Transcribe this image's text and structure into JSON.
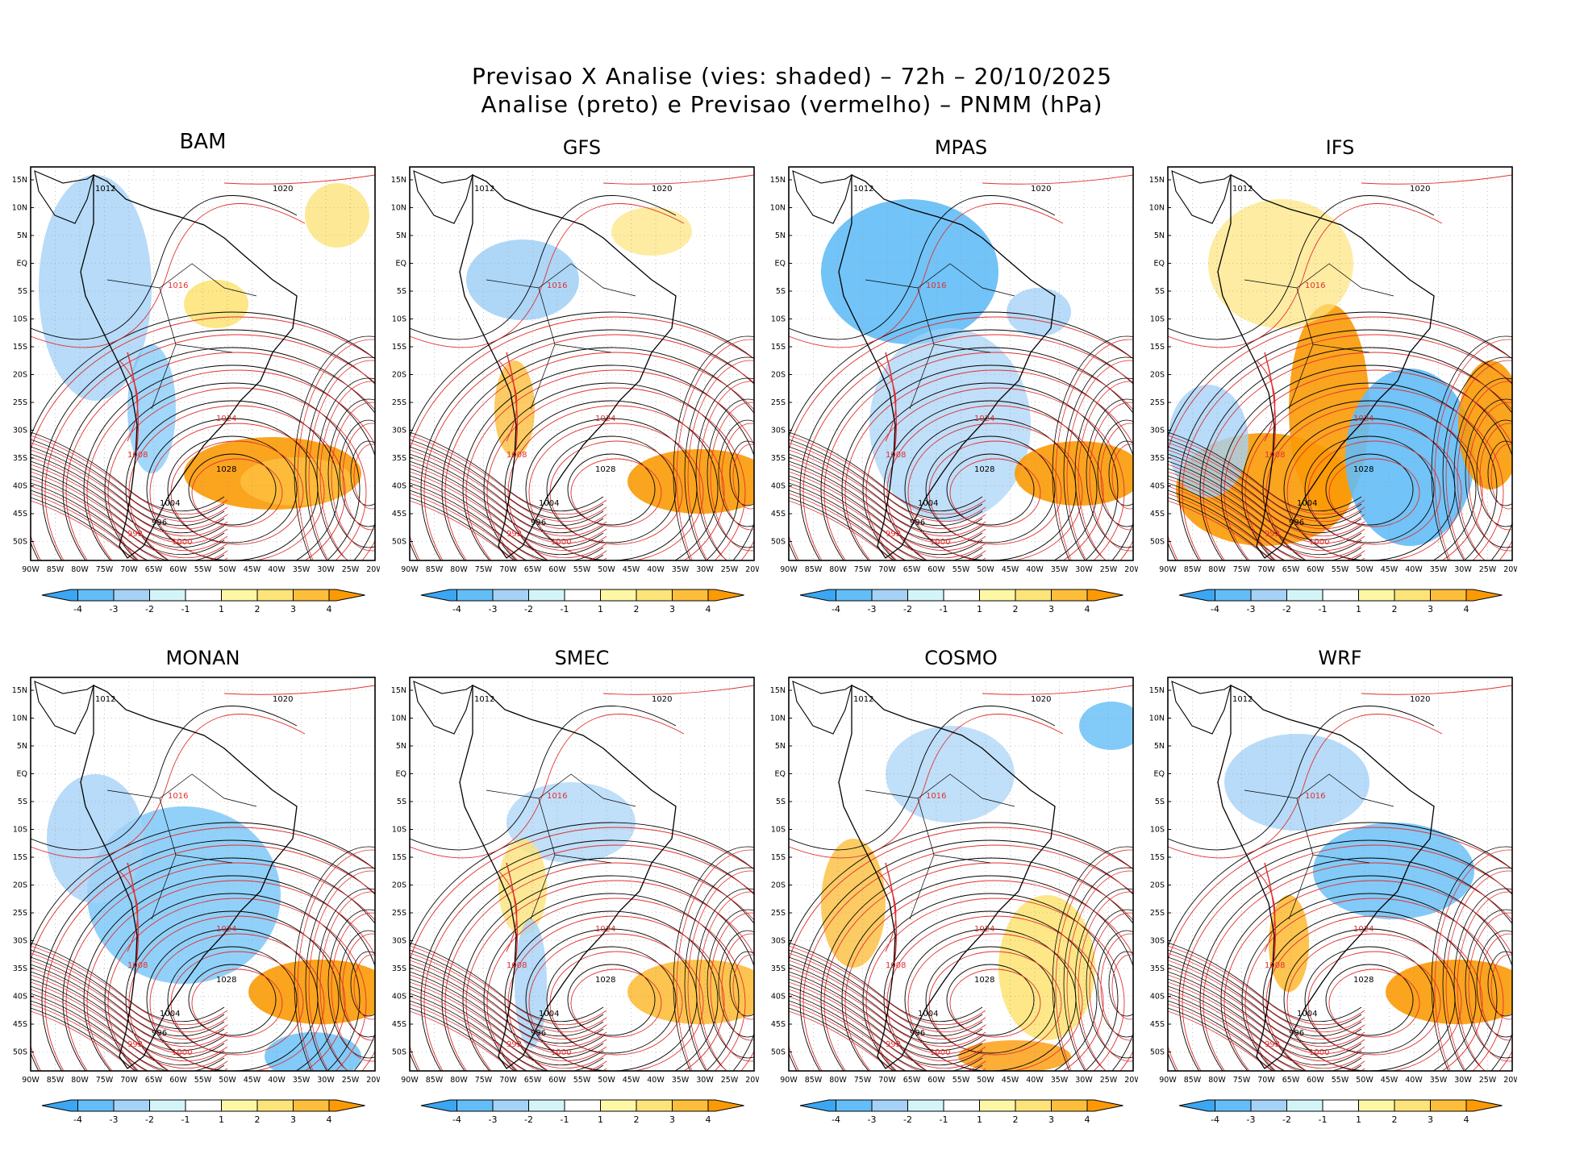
{
  "figure": {
    "title_line1": "Previsao X Analise (vies: shaded) – 72h – 20/10/2025",
    "title_line2": "Analise (preto) e Previsao (vermelho) – PNMM (hPa)"
  },
  "axes": {
    "lat_labels": [
      "15N",
      "10N",
      "5N",
      "EQ",
      "5S",
      "10S",
      "15S",
      "20S",
      "25S",
      "30S",
      "35S",
      "40S",
      "45S",
      "50S"
    ],
    "lon_labels": [
      "90W",
      "85W",
      "80W",
      "75W",
      "70W",
      "65W",
      "60W",
      "55W",
      "50W",
      "45W",
      "40W",
      "35W",
      "30W",
      "25W",
      "20W"
    ]
  },
  "colorbar": {
    "labels": [
      "-4",
      "-3",
      "-2",
      "-1",
      "1",
      "2",
      "3",
      "4"
    ],
    "colors": [
      "#3ba6f2",
      "#63bdf6",
      "#a5d2f6",
      "#d3f5f8",
      "#ffffff",
      "#fdf7a6",
      "#fde47a",
      "#fdbe3c",
      "#fb9a05"
    ]
  },
  "contour_colors": {
    "analysis": "#000000",
    "forecast": "#e03030"
  },
  "panels": [
    {
      "name": "BAM",
      "pressure_labels": [
        "1012",
        "1016",
        "1020",
        "1024",
        "1028",
        "1008",
        "1004",
        "1000",
        "996",
        "992"
      ]
    },
    {
      "name": "GFS",
      "pressure_labels": [
        "1012",
        "1016",
        "1020",
        "1024",
        "1028",
        "1008",
        "1004",
        "1000",
        "996",
        "992"
      ]
    },
    {
      "name": "MPAS",
      "pressure_labels": [
        "1012",
        "1016",
        "1020",
        "1024",
        "1028",
        "1008",
        "1004",
        "1000",
        "996",
        "992"
      ]
    },
    {
      "name": "IFS",
      "pressure_labels": [
        "1012",
        "1016",
        "1020",
        "1024",
        "1028",
        "1008",
        "1004",
        "1000",
        "996",
        "992"
      ]
    },
    {
      "name": "MONAN",
      "pressure_labels": [
        "1012",
        "1016",
        "1020",
        "1024",
        "1028",
        "1008",
        "1004",
        "1000",
        "996",
        "992"
      ]
    },
    {
      "name": "SMEC",
      "pressure_labels": [
        "1012",
        "1016",
        "1020",
        "1024",
        "1028",
        "1008",
        "1004",
        "1000",
        "996",
        "992"
      ]
    },
    {
      "name": "COSMO",
      "pressure_labels": [
        "1012",
        "1016",
        "1020",
        "1024",
        "1028",
        "1008",
        "1004",
        "1000",
        "996",
        "992"
      ]
    },
    {
      "name": "WRF",
      "pressure_labels": [
        "1012",
        "1016",
        "1020",
        "1024",
        "1028",
        "1008",
        "1004",
        "1000",
        "996",
        "992"
      ]
    }
  ]
}
